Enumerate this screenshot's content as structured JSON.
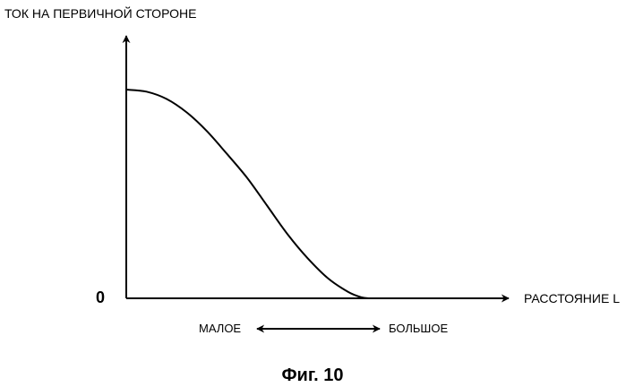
{
  "chart_data": {
    "type": "line",
    "ylabel": "ТОК НА ПЕРВИЧНОЙ СТОРОНЕ",
    "xlabel": "РАССТОЯНИЕ L",
    "origin_label": "0",
    "small_label": "МАЛОЕ",
    "large_label": "БОЛЬШОЕ",
    "caption": "Фиг. 10",
    "xlim": [
      0,
      1
    ],
    "ylim": [
      0,
      1
    ],
    "grid": false,
    "legend": "none",
    "series": [
      {
        "points": [
          [
            0.0,
            1.0
          ],
          [
            0.055,
            0.99
          ],
          [
            0.11,
            0.955
          ],
          [
            0.165,
            0.89
          ],
          [
            0.22,
            0.8
          ],
          [
            0.275,
            0.69
          ],
          [
            0.33,
            0.575
          ],
          [
            0.385,
            0.44
          ],
          [
            0.44,
            0.305
          ],
          [
            0.495,
            0.19
          ],
          [
            0.55,
            0.095
          ],
          [
            0.605,
            0.03
          ],
          [
            0.64,
            0.005
          ],
          [
            0.66,
            0.0
          ]
        ]
      }
    ]
  }
}
